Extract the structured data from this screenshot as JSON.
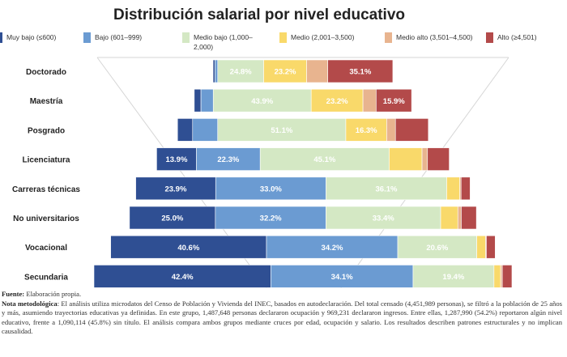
{
  "colors": {
    "muy_bajo": "#2f4f93",
    "bajo": "#6b9bd2",
    "medio_bajo": "#d4e8c4",
    "medio": "#f9d96a",
    "medio_alto": "#e8b48f",
    "alto": "#b34a4a"
  },
  "chart_data": {
    "type": "bar",
    "orientation": "horizontal",
    "stacked": "100%",
    "title": "Distribución salarial por nivel educativo",
    "legend_position": "top",
    "categories": [
      "Doctorado",
      "Maestría",
      "Posgrado",
      "Licenciatura",
      "Carreras técnicas",
      "No universitarios",
      "Vocacional",
      "Secundaria"
    ],
    "series": [
      {
        "name": "Muy bajo (≤600)",
        "color_key": "muy_bajo",
        "values": [
          1.0,
          3.0,
          6.0,
          13.9,
          23.9,
          25.0,
          40.6,
          42.4
        ]
      },
      {
        "name": "Bajo (601–999)",
        "color_key": "bajo",
        "values": [
          1.5,
          5.5,
          10.0,
          22.3,
          33.0,
          32.2,
          34.2,
          34.1
        ]
      },
      {
        "name": "Medio bajo (1,000–2,000)",
        "color_key": "medio_bajo",
        "values": [
          24.8,
          43.9,
          51.1,
          45.1,
          36.1,
          33.4,
          20.6,
          19.4
        ]
      },
      {
        "name": "Medio (2,001–3,500)",
        "color_key": "medio",
        "values": [
          23.2,
          23.2,
          16.3,
          11.5,
          3.9,
          5.0,
          2.3,
          1.6
        ]
      },
      {
        "name": "Medio alto (3,501–4,500)",
        "color_key": "medio_alto",
        "values": [
          11.4,
          5.9,
          3.5,
          1.9,
          0.4,
          1.0,
          0.2,
          0.4
        ]
      },
      {
        "name": "Alto (≥4,501)",
        "color_key": "alto",
        "values": [
          35.1,
          15.9,
          13.1,
          7.6,
          2.7,
          4.4,
          2.3,
          2.3
        ]
      }
    ],
    "data_labels": [
      [
        "",
        "",
        "24.8%",
        "23.2%",
        "",
        "35.1%"
      ],
      [
        "",
        "",
        "43.9%",
        "23.2%",
        "",
        "15.9%"
      ],
      [
        "",
        "",
        "51.1%",
        "16.3%",
        "",
        ""
      ],
      [
        "13.9%",
        "22.3%",
        "45.1%",
        "",
        "",
        ""
      ],
      [
        "23.9%",
        "33.0%",
        "36.1%",
        "",
        "",
        ""
      ],
      [
        "25.0%",
        "32.2%",
        "33.4%",
        "",
        "",
        ""
      ],
      [
        "40.6%",
        "34.2%",
        "20.6%",
        "",
        "",
        ""
      ],
      [
        "42.4%",
        "34.1%",
        "19.4%",
        "",
        "",
        ""
      ]
    ],
    "bar_width_share": [
      0.43,
      0.52,
      0.6,
      0.7,
      0.8,
      0.83,
      0.92,
      1.0
    ],
    "funnel_outline": true,
    "grid": false
  },
  "notes": {
    "source_label": "Fuente:",
    "source_text": " Elaboración propia.",
    "note_label_1": "Nota ",
    "note_label_2": "metodológica",
    "note_text": ": El análisis utiliza microdatos del Censo de Población y Vivienda del INEC, basados en autodeclaración. Del total censado (4,451,989 personas), se filtró a la población de 25 años y más, asumiendo trayectorias educativas ya definidas. En este grupo, 1,487,648 personas declararon ocupación y 969,231 declararon ingresos. Entre ellas, 1,287,990 (54.2%) reportaron algún nivel educativo, frente a 1,090,114 (45.8%) sin título. El análisis compara ambos grupos mediante cruces por edad, ocupación y salario. Los resultados describen patrones estructurales y no implican causalidad."
  }
}
